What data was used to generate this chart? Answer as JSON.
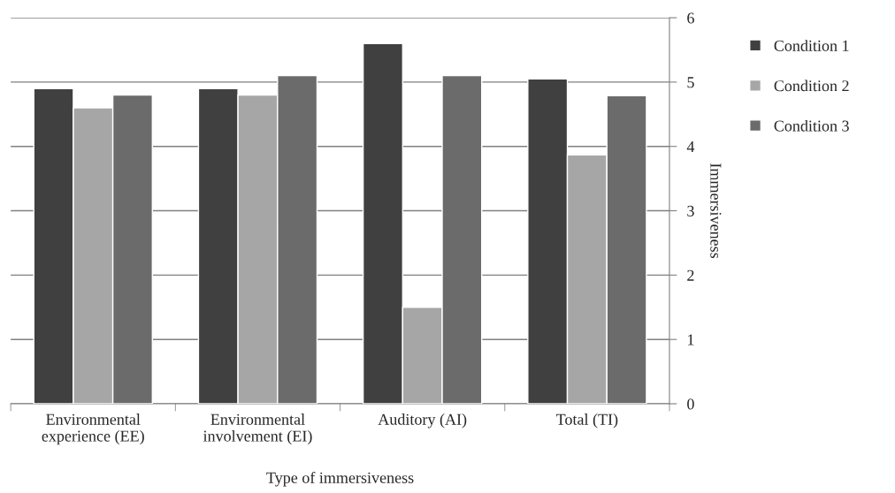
{
  "chart_data": {
    "type": "bar",
    "xlabel": "Type of immersiveness",
    "ylabel": "Immersiveness",
    "categories": [
      "Environmental\nexperience (EE)",
      "Environmental\ninvolvement (EI)",
      "Auditory (AI)",
      "Total (TI)"
    ],
    "series": [
      {
        "name": "Condition 1",
        "color": "#404040",
        "values": [
          4.9,
          4.9,
          5.6,
          5.05
        ]
      },
      {
        "name": "Condition 2",
        "color": "#a6a6a6",
        "values": [
          4.6,
          4.8,
          1.5,
          3.87
        ]
      },
      {
        "name": "Condition 3",
        "color": "#6b6b6b",
        "values": [
          4.8,
          5.1,
          5.1,
          4.79
        ]
      }
    ],
    "ylim": [
      0,
      6
    ],
    "yticks": [
      0,
      1,
      2,
      3,
      4,
      5,
      6
    ],
    "grid": "y",
    "legend": "right"
  }
}
